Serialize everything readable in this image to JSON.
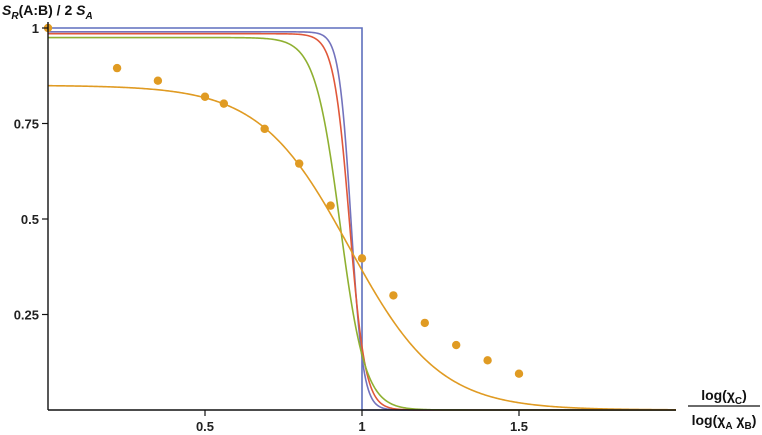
{
  "chart_data": {
    "type": "line",
    "title": "",
    "ylabel": {
      "main": "S",
      "main_sub": "R",
      "rest": "(A:B) / 2 ",
      "rest_main": "S",
      "rest_sub": "A"
    },
    "xlabel": {
      "numerator": "log(χ",
      "numerator_sub": "C",
      "numerator_end": ")",
      "denominator": "log(χ",
      "denominator_sub1": "A",
      "denominator_mid": " χ",
      "denominator_sub2": "B",
      "denominator_end": ")"
    },
    "xlim": [
      0,
      2.0
    ],
    "ylim": [
      0,
      1.0
    ],
    "x_ticks": [
      {
        "value": 0.5,
        "label": "0.5"
      },
      {
        "value": 1.0,
        "label": "1"
      },
      {
        "value": 1.5,
        "label": "1.5"
      }
    ],
    "y_ticks": [
      {
        "value": 0.25,
        "label": "0.25"
      },
      {
        "value": 0.5,
        "label": "0.5"
      },
      {
        "value": 0.75,
        "label": "0.75"
      },
      {
        "value": 1.0,
        "label": "1"
      }
    ],
    "grid": false,
    "legend": "none",
    "series": [
      {
        "color": "#5e6fbd",
        "kind": "step",
        "x": [
          0,
          1.0,
          1.0,
          2.0
        ],
        "y": [
          1.0,
          1.0,
          0,
          0
        ]
      },
      {
        "color": "#7373bd",
        "kind": "logistic",
        "L": 0.99,
        "k": 52,
        "x0": 0.965
      },
      {
        "color": "#e0583a",
        "kind": "logistic",
        "L": 0.985,
        "k": 40,
        "x0": 0.96
      },
      {
        "color": "#8fb031",
        "kind": "logistic",
        "L": 0.975,
        "k": 25,
        "x0": 0.93
      },
      {
        "color": "#e09b23",
        "kind": "logistic",
        "L": 0.85,
        "k": 7,
        "x0": 0.96
      }
    ],
    "points": {
      "color": "#e09b23",
      "x": [
        0.0,
        0.22,
        0.35,
        0.5,
        0.56,
        0.69,
        0.8,
        0.9,
        1.0,
        1.1,
        1.2,
        1.3,
        1.4,
        1.5
      ],
      "y": [
        1.0,
        0.895,
        0.862,
        0.82,
        0.802,
        0.736,
        0.645,
        0.535,
        0.397,
        0.3,
        0.228,
        0.17,
        0.13,
        0.095
      ]
    }
  }
}
